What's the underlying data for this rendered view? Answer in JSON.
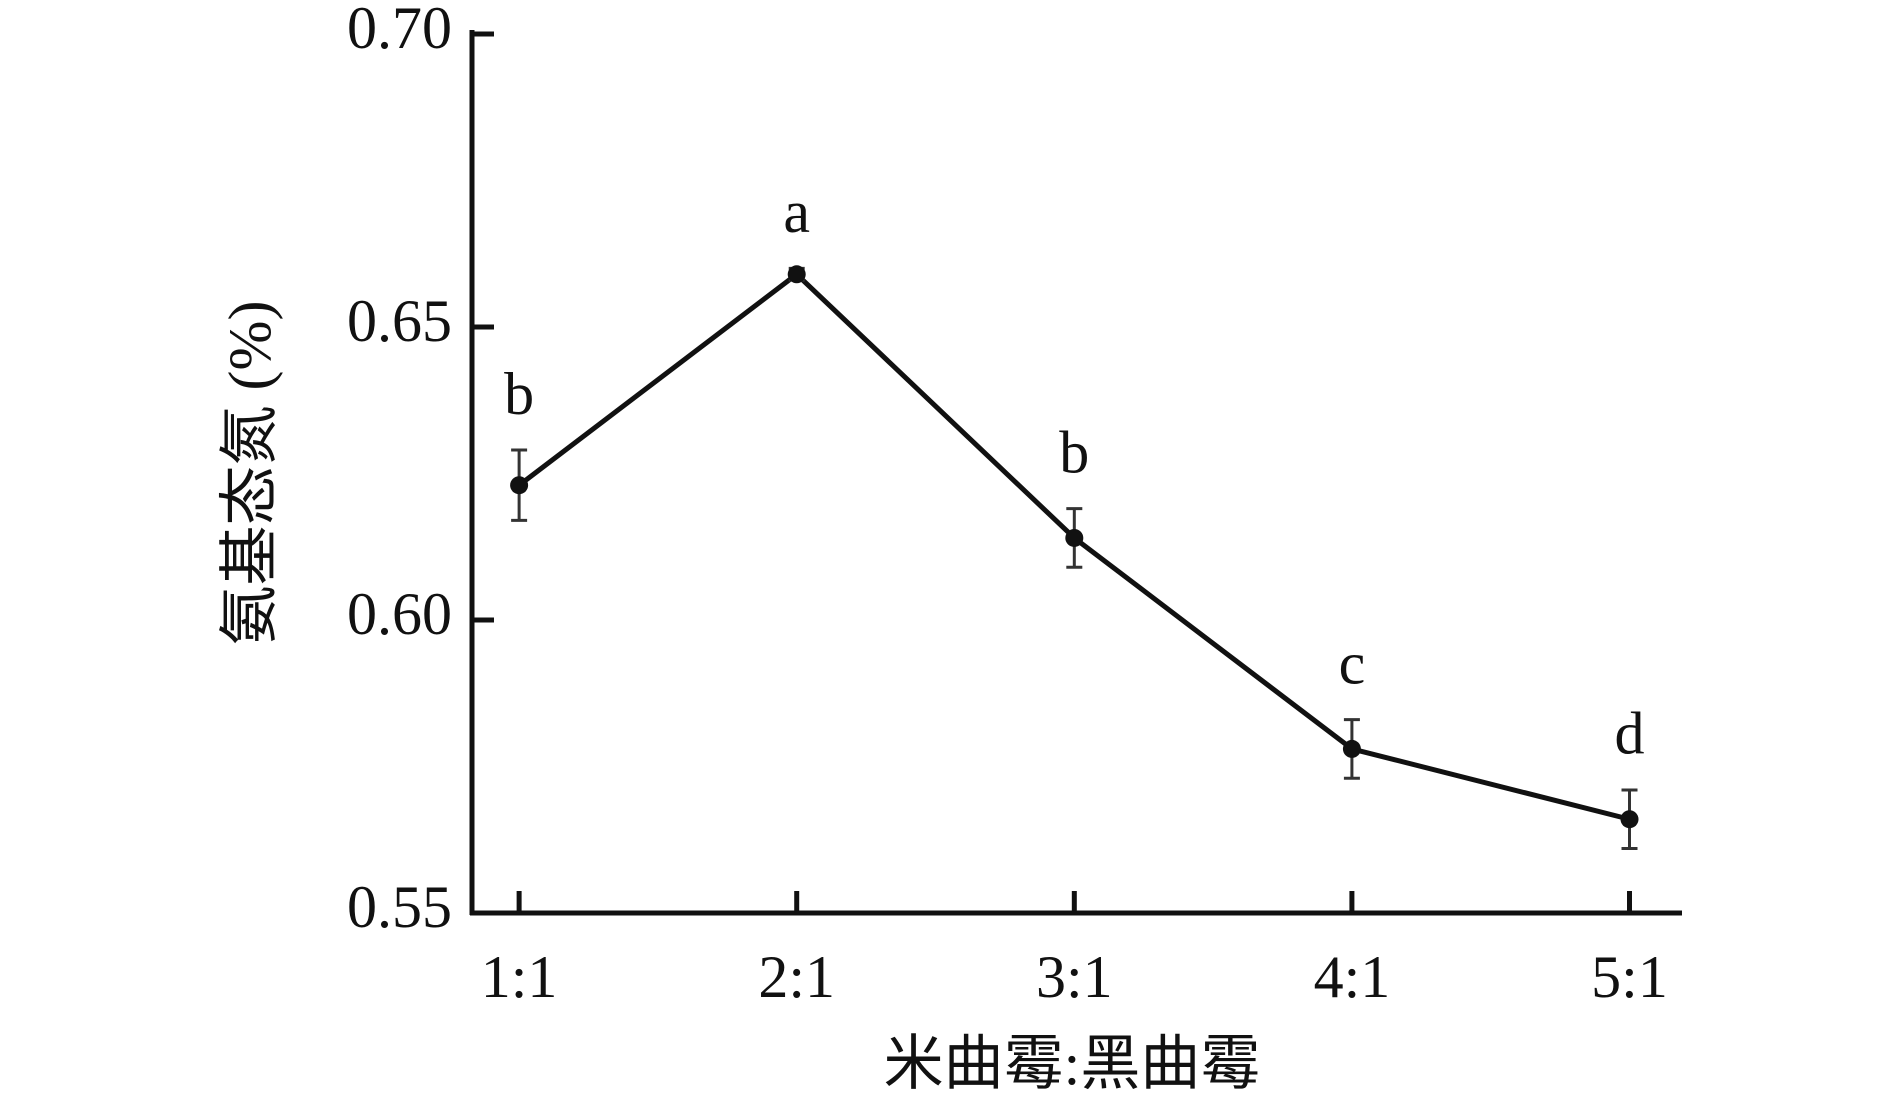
{
  "chart_data": {
    "type": "line",
    "x_label": "米曲霉:黑曲霉",
    "y_label": "氨基态氮 (%)",
    "categories": [
      "1:1",
      "2:1",
      "3:1",
      "4:1",
      "5:1"
    ],
    "series": [
      {
        "color": "#111111",
        "values": [
          0.623,
          0.659,
          0.614,
          0.578,
          0.566
        ],
        "errors": [
          0.006,
          0.001,
          0.005,
          0.005,
          0.005
        ],
        "significance_labels": [
          "b",
          "a",
          "b",
          "c",
          "d"
        ]
      }
    ],
    "ylim": [
      0.55,
      0.7
    ],
    "yticks": [
      0.55,
      {
        "value": 0.6,
        "label": "0.60"
      },
      0.65,
      {
        "value": 0.7,
        "label": "0.70"
      }
    ]
  }
}
